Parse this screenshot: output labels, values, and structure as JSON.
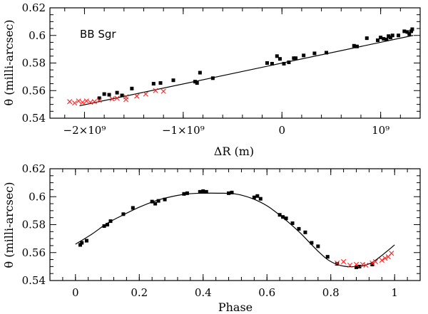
{
  "chart_data": [
    {
      "type": "scatter",
      "panel_label": "BB Sgr",
      "xlabel": "ΔR (m)",
      "ylabel": "θ (milli-arcsec)",
      "xlim": [
        -2350000000.0,
        1400000000.0
      ],
      "ylim": [
        0.54,
        0.62
      ],
      "x_ticks": [
        {
          "value": -2000000000.0,
          "label": "−2×10⁹"
        },
        {
          "value": -1000000000.0,
          "label": "−1×10⁹"
        },
        {
          "value": 0,
          "label": "0"
        },
        {
          "value": 1000000000.0,
          "label": "10⁹"
        }
      ],
      "y_ticks": [
        {
          "value": 0.54,
          "label": "0.54"
        },
        {
          "value": 0.56,
          "label": "0.56"
        },
        {
          "value": 0.58,
          "label": "0.58"
        },
        {
          "value": 0.6,
          "label": "0.6"
        },
        {
          "value": 0.62,
          "label": "0.62"
        }
      ],
      "fit_line": {
        "x": [
          -2050000000.0,
          1330000000.0
        ],
        "y": [
          0.549,
          0.6
        ]
      },
      "series": [
        {
          "name": "black squares",
          "marker": "square",
          "color": "#000000",
          "points": [
            [
              -1850000000.0,
              0.5545
            ],
            [
              -1800000000.0,
              0.5575
            ],
            [
              -1750000000.0,
              0.557
            ],
            [
              -1670000000.0,
              0.5585
            ],
            [
              -1620000000.0,
              0.5565
            ],
            [
              -1520000000.0,
              0.5615
            ],
            [
              -1300000000.0,
              0.565
            ],
            [
              -1230000000.0,
              0.5655
            ],
            [
              -1100000000.0,
              0.5675
            ],
            [
              -880000000.0,
              0.5665
            ],
            [
              -860000000.0,
              0.5655
            ],
            [
              -830000000.0,
              0.573
            ],
            [
              -700000000.0,
              0.569
            ],
            [
              -150000000.0,
              0.58
            ],
            [
              -100000000.0,
              0.5795
            ],
            [
              -50000000.0,
              0.585
            ],
            [
              -20000000.0,
              0.583
            ],
            [
              20000000.0,
              0.5795
            ],
            [
              70000000.0,
              0.5805
            ],
            [
              120000000.0,
              0.5835
            ],
            [
              140000000.0,
              0.5835
            ],
            [
              220000000.0,
              0.5855
            ],
            [
              330000000.0,
              0.587
            ],
            [
              450000000.0,
              0.5875
            ],
            [
              730000000.0,
              0.5925
            ],
            [
              760000000.0,
              0.592
            ],
            [
              860000000.0,
              0.598
            ],
            [
              970000000.0,
              0.5965
            ],
            [
              1000000000.0,
              0.5985
            ],
            [
              1030000000.0,
              0.5975
            ],
            [
              1060000000.0,
              0.597
            ],
            [
              1080000000.0,
              0.5995
            ],
            [
              1100000000.0,
              0.5985
            ],
            [
              1120000000.0,
              0.6
            ],
            [
              1180000000.0,
              0.6
            ],
            [
              1240000000.0,
              0.603
            ],
            [
              1270000000.0,
              0.6025
            ],
            [
              1290000000.0,
              0.601
            ],
            [
              1310000000.0,
              0.603
            ],
            [
              1320000000.0,
              0.6045
            ]
          ]
        },
        {
          "name": "red crosses",
          "marker": "x",
          "color": "#ff2020",
          "points": [
            [
              -2150000000.0,
              0.552
            ],
            [
              -2100000000.0,
              0.551
            ],
            [
              -2060000000.0,
              0.5525
            ],
            [
              -2020000000.0,
              0.5515
            ],
            [
              -1980000000.0,
              0.5525
            ],
            [
              -1940000000.0,
              0.5515
            ],
            [
              -1900000000.0,
              0.552
            ],
            [
              -1850000000.0,
              0.553
            ],
            [
              -1720000000.0,
              0.554
            ],
            [
              -1670000000.0,
              0.5545
            ],
            [
              -1580000000.0,
              0.5535
            ],
            [
              -1580000000.0,
              0.5555
            ],
            [
              -1470000000.0,
              0.556
            ],
            [
              -1380000000.0,
              0.5575
            ],
            [
              -1280000000.0,
              0.56
            ],
            [
              -1200000000.0,
              0.5595
            ]
          ]
        }
      ]
    },
    {
      "type": "scatter",
      "xlabel": "Phase",
      "ylabel": "θ (milli-arcsec)",
      "xlim": [
        -0.08,
        1.08
      ],
      "ylim": [
        0.54,
        0.62
      ],
      "x_ticks": [
        {
          "value": 0,
          "label": "0"
        },
        {
          "value": 0.2,
          "label": "0.2"
        },
        {
          "value": 0.4,
          "label": "0.4"
        },
        {
          "value": 0.6,
          "label": "0.6"
        },
        {
          "value": 0.8,
          "label": "0.8"
        },
        {
          "value": 1,
          "label": "1"
        }
      ],
      "y_ticks": [
        {
          "value": 0.54,
          "label": "0.54"
        },
        {
          "value": 0.56,
          "label": "0.56"
        },
        {
          "value": 0.58,
          "label": "0.58"
        },
        {
          "value": 0.6,
          "label": "0.6"
        },
        {
          "value": 0.62,
          "label": "0.62"
        }
      ],
      "fit_curve": {
        "x": [
          0,
          0.05,
          0.1,
          0.15,
          0.2,
          0.25,
          0.3,
          0.35,
          0.4,
          0.45,
          0.5,
          0.55,
          0.6,
          0.65,
          0.7,
          0.73,
          0.76,
          0.79,
          0.82,
          0.85,
          0.88,
          0.9,
          0.93,
          0.96,
          1.0
        ],
        "y": [
          0.566,
          0.573,
          0.581,
          0.587,
          0.5925,
          0.597,
          0.6,
          0.602,
          0.6025,
          0.6025,
          0.602,
          0.599,
          0.5935,
          0.585,
          0.575,
          0.568,
          0.561,
          0.555,
          0.5515,
          0.55,
          0.55,
          0.5505,
          0.553,
          0.558,
          0.5655
        ]
      },
      "series": [
        {
          "name": "black squares",
          "marker": "square",
          "color": "#000000",
          "points": [
            [
              0.015,
              0.5655
            ],
            [
              0.02,
              0.567
            ],
            [
              0.035,
              0.5685
            ],
            [
              0.09,
              0.579
            ],
            [
              0.1,
              0.58
            ],
            [
              0.11,
              0.5825
            ],
            [
              0.15,
              0.5875
            ],
            [
              0.18,
              0.592
            ],
            [
              0.24,
              0.5965
            ],
            [
              0.25,
              0.595
            ],
            [
              0.26,
              0.597
            ],
            [
              0.28,
              0.598
            ],
            [
              0.34,
              0.602
            ],
            [
              0.35,
              0.6025
            ],
            [
              0.39,
              0.6035
            ],
            [
              0.4,
              0.604
            ],
            [
              0.41,
              0.6035
            ],
            [
              0.48,
              0.6025
            ],
            [
              0.49,
              0.603
            ],
            [
              0.56,
              0.5995
            ],
            [
              0.57,
              0.6005
            ],
            [
              0.58,
              0.5985
            ],
            [
              0.64,
              0.587
            ],
            [
              0.65,
              0.5855
            ],
            [
              0.66,
              0.5845
            ],
            [
              0.68,
              0.581
            ],
            [
              0.7,
              0.577
            ],
            [
              0.72,
              0.5745
            ],
            [
              0.74,
              0.567
            ],
            [
              0.76,
              0.5645
            ],
            [
              0.79,
              0.557
            ],
            [
              0.82,
              0.552
            ],
            [
              0.88,
              0.5495
            ],
            [
              0.89,
              0.55
            ],
            [
              0.93,
              0.5515
            ]
          ]
        },
        {
          "name": "red crosses",
          "marker": "x",
          "color": "#ff2020",
          "points": [
            [
              0.82,
              0.5525
            ],
            [
              0.84,
              0.5535
            ],
            [
              0.86,
              0.551
            ],
            [
              0.88,
              0.5515
            ],
            [
              0.9,
              0.5515
            ],
            [
              0.91,
              0.551
            ],
            [
              0.93,
              0.5525
            ],
            [
              0.94,
              0.5535
            ],
            [
              0.96,
              0.5545
            ],
            [
              0.97,
              0.556
            ],
            [
              0.98,
              0.557
            ],
            [
              0.99,
              0.5595
            ]
          ]
        }
      ]
    }
  ]
}
